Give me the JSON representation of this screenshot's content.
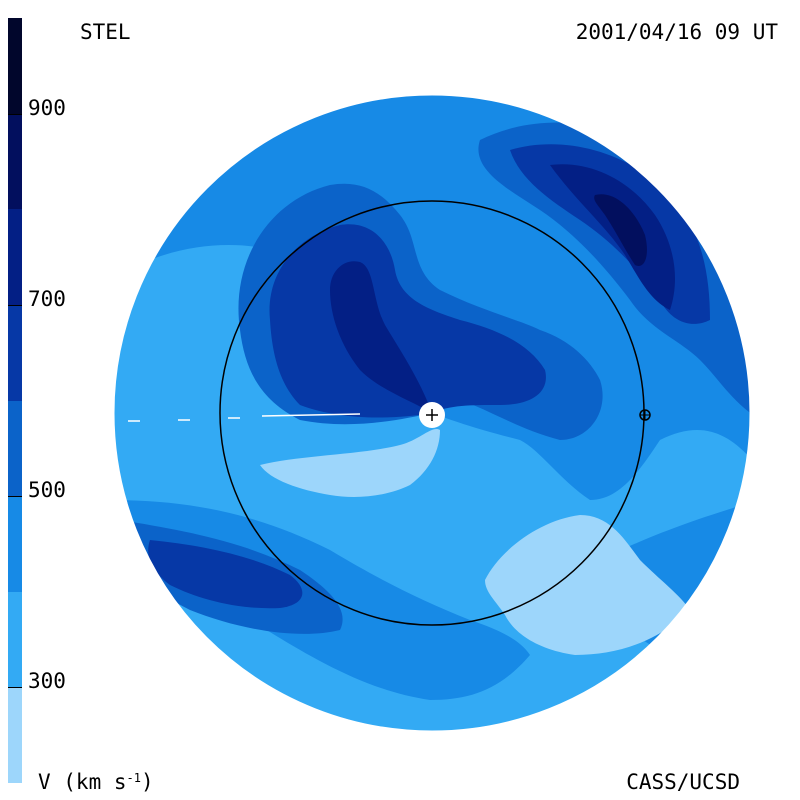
{
  "header": {
    "source": "STEL",
    "datetime": "2001/04/16 09 UT"
  },
  "footer": {
    "quantity": "V (km s",
    "unit_exp": "-1",
    "unit_close": ")",
    "credit": "CASS/UCSD"
  },
  "colorbar": {
    "min": 200,
    "max": 1000,
    "ticks": [
      {
        "value": 900,
        "label": "900"
      },
      {
        "value": 700,
        "label": "700"
      },
      {
        "value": 500,
        "label": "500"
      },
      {
        "value": 300,
        "label": "300"
      }
    ],
    "bands": [
      {
        "from": 200,
        "to": 300,
        "color": "#9dd6fb"
      },
      {
        "from": 300,
        "to": 400,
        "color": "#33aaf4"
      },
      {
        "from": 400,
        "to": 500,
        "color": "#178ae6"
      },
      {
        "from": 500,
        "to": 600,
        "color": "#0b63c9"
      },
      {
        "from": 600,
        "to": 700,
        "color": "#0638a6"
      },
      {
        "from": 700,
        "to": 800,
        "color": "#031f85"
      },
      {
        "from": 800,
        "to": 900,
        "color": "#020f5e"
      },
      {
        "from": 900,
        "to": 1000,
        "color": "#01062c"
      }
    ]
  },
  "map": {
    "description_icons": [
      "sun-marker-icon",
      "earth-marker-icon",
      "earth-orbit-circle"
    ]
  }
}
